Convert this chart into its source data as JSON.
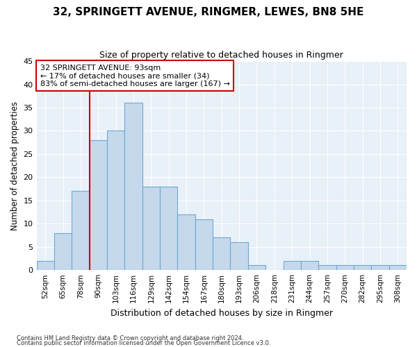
{
  "title": "32, SPRINGETT AVENUE, RINGMER, LEWES, BN8 5HE",
  "subtitle": "Size of property relative to detached houses in Ringmer",
  "xlabel": "Distribution of detached houses by size in Ringmer",
  "ylabel": "Number of detached properties",
  "bar_color": "#c5d8ec",
  "bar_edge_color": "#6fa8d0",
  "background_color": "#e8f0f8",
  "categories": [
    "52sqm",
    "65sqm",
    "78sqm",
    "90sqm",
    "103sqm",
    "116sqm",
    "129sqm",
    "142sqm",
    "154sqm",
    "167sqm",
    "180sqm",
    "193sqm",
    "206sqm",
    "218sqm",
    "231sqm",
    "244sqm",
    "257sqm",
    "270sqm",
    "282sqm",
    "295sqm",
    "308sqm"
  ],
  "values": [
    2,
    8,
    17,
    28,
    30,
    36,
    18,
    18,
    12,
    11,
    7,
    6,
    1,
    0,
    2,
    2,
    1,
    1,
    1,
    1,
    1
  ],
  "ylim": [
    0,
    45
  ],
  "yticks": [
    0,
    5,
    10,
    15,
    20,
    25,
    30,
    35,
    40,
    45
  ],
  "red_line_index": 3,
  "annotation_line1": "32 SPRINGETT AVENUE: 93sqm",
  "annotation_line2": "← 17% of detached houses are smaller (34)",
  "annotation_line3": "83% of semi-detached houses are larger (167) →",
  "annotation_box_color": "#ffffff",
  "annotation_box_edge_color": "#cc0000",
  "red_line_color": "#cc0000",
  "footnote1": "Contains HM Land Registry data © Crown copyright and database right 2024.",
  "footnote2": "Contains public sector information licensed under the Open Government Licence v3.0."
}
